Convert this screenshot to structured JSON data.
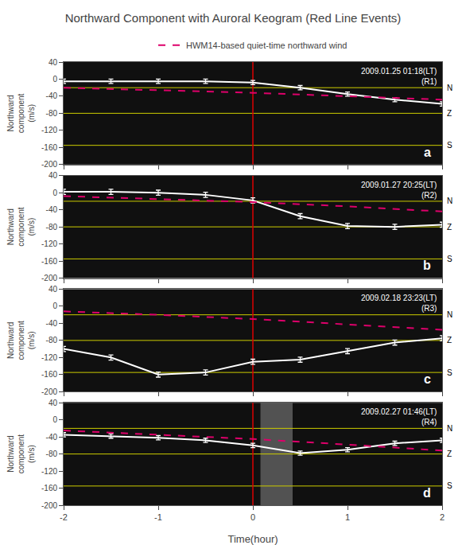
{
  "chart_data": [
    {
      "type": "line",
      "title": "Northward Component with Auroral Keogram (Red Line Events)",
      "ylabel": "Northward\ncomponent\n(m/s)",
      "xlim": [
        -2.0,
        2.0
      ],
      "ylim": [
        -200,
        40
      ],
      "xticks": [
        -2,
        -1,
        0,
        1,
        2
      ],
      "yticks": [
        40,
        0,
        -40,
        -80,
        -120,
        -160,
        -200
      ],
      "grid": false,
      "tick_labels": "y",
      "series": [
        {
          "color": "white",
          "line_style": "solid",
          "x": [
            -2.0,
            -1.5,
            -1.0,
            -0.5,
            0.0,
            0.5,
            1.0,
            1.5,
            2.0
          ],
          "values": [
            -5,
            -5,
            -5,
            -5,
            -8,
            -20,
            -35,
            -48,
            -58
          ],
          "error": [
            5,
            5,
            5,
            5,
            5,
            5,
            5,
            5,
            5
          ]
        },
        {
          "name": "HWM14-based quiet-time northward wind",
          "color": "#dd006a",
          "line_style": "dashed",
          "x": [
            -2.0,
            -1.0,
            0.0,
            1.0,
            2.0
          ],
          "values": [
            -20,
            -26,
            -32,
            -40,
            -48
          ]
        }
      ],
      "annotations": [
        "a",
        "2009.01.25 01:18(LT)\n(R1)"
      ],
      "reference_lines": [
        {
          "y": -20,
          "label": "N",
          "color": "#cccc00"
        },
        {
          "y": -80,
          "label": "Z",
          "color": "#cccc00"
        },
        {
          "y": -155,
          "label": "S",
          "color": "#cccc00"
        },
        {
          "x": 0,
          "color": "#dd0000"
        }
      ]
    },
    {
      "type": "line",
      "ylabel": "Northward\ncomponent\n(m/s)",
      "xlim": [
        -2.0,
        2.0
      ],
      "ylim": [
        -200,
        40
      ],
      "xticks": [
        -2,
        -1,
        0,
        1,
        2
      ],
      "yticks": [
        40,
        0,
        -40,
        -80,
        -120,
        -160,
        -200
      ],
      "grid": false,
      "tick_labels": "y",
      "series": [
        {
          "color": "white",
          "line_style": "solid",
          "x": [
            -2.0,
            -1.5,
            -1.0,
            -0.5,
            0.0,
            0.5,
            1.0,
            1.5,
            2.0
          ],
          "values": [
            2,
            2,
            0,
            -5,
            -18,
            -55,
            -78,
            -80,
            -75
          ],
          "error": [
            6,
            6,
            6,
            6,
            6,
            6,
            6,
            6,
            6
          ]
        },
        {
          "name": "HWM14-based quiet-time northward wind",
          "color": "#dd006a",
          "line_style": "dashed",
          "x": [
            -2.0,
            -1.0,
            0.0,
            1.0,
            2.0
          ],
          "values": [
            -8,
            -15,
            -22,
            -32,
            -44
          ]
        }
      ],
      "annotations": [
        "b",
        "2009.01.27 20:25(LT)\n(R2)"
      ],
      "reference_lines": [
        {
          "y": -20,
          "label": "N",
          "color": "#cccc00"
        },
        {
          "y": -80,
          "label": "Z",
          "color": "#cccc00"
        },
        {
          "y": -155,
          "label": "S",
          "color": "#cccc00"
        },
        {
          "x": 0,
          "color": "#dd0000"
        }
      ]
    },
    {
      "type": "line",
      "ylabel": "Northward\ncomponent\n(m/s)",
      "xlim": [
        -2.0,
        2.0
      ],
      "ylim": [
        -200,
        40
      ],
      "xticks": [
        -2,
        -1,
        0,
        1,
        2
      ],
      "yticks": [
        40,
        0,
        -40,
        -80,
        -120,
        -160,
        -200
      ],
      "grid": false,
      "tick_labels": "y",
      "series": [
        {
          "color": "white",
          "line_style": "solid",
          "x": [
            -2.0,
            -1.5,
            -1.0,
            -0.5,
            0.0,
            0.5,
            1.0,
            1.5,
            2.0
          ],
          "values": [
            -100,
            -120,
            -160,
            -155,
            -130,
            -125,
            -105,
            -85,
            -75
          ],
          "error": [
            6,
            6,
            6,
            6,
            6,
            6,
            6,
            6,
            6
          ]
        },
        {
          "name": "HWM14-based quiet-time northward wind",
          "color": "#dd006a",
          "line_style": "dashed",
          "x": [
            -2.0,
            -1.0,
            0.0,
            1.0,
            2.0
          ],
          "values": [
            -12,
            -20,
            -30,
            -42,
            -55
          ]
        }
      ],
      "annotations": [
        "c",
        "2009.02.18 23:23(LT)\n(R3)"
      ],
      "reference_lines": [
        {
          "y": -20,
          "label": "N",
          "color": "#cccc00"
        },
        {
          "y": -80,
          "label": "Z",
          "color": "#cccc00"
        },
        {
          "y": -155,
          "label": "S",
          "color": "#cccc00"
        },
        {
          "x": 0,
          "color": "#dd0000"
        }
      ]
    },
    {
      "type": "line",
      "xlabel": "Time(hour)",
      "ylabel": "Northward\ncomponent\n(m/s)",
      "xlim": [
        -2.0,
        2.0
      ],
      "ylim": [
        -200,
        40
      ],
      "xticks": [
        -2,
        -1,
        0,
        1,
        2
      ],
      "yticks": [
        40,
        0,
        -40,
        -80,
        -120,
        -160,
        -200
      ],
      "grid": false,
      "series": [
        {
          "color": "white",
          "line_style": "solid",
          "x": [
            -2.0,
            -1.5,
            -1.0,
            -0.5,
            0.0,
            0.5,
            1.0,
            1.5,
            2.0
          ],
          "values": [
            -35,
            -38,
            -42,
            -48,
            -60,
            -78,
            -70,
            -55,
            -48
          ],
          "error": [
            5,
            5,
            5,
            5,
            5,
            5,
            5,
            5,
            5
          ]
        },
        {
          "name": "HWM14-based quiet-time northward wind",
          "color": "#dd006a",
          "line_style": "dashed",
          "x": [
            -2.0,
            -1.0,
            0.0,
            1.0,
            2.0
          ],
          "values": [
            -25,
            -35,
            -45,
            -58,
            -72
          ]
        }
      ],
      "annotations": [
        "d",
        "2009.02.27 01:46(LT)\n(R4)"
      ],
      "reference_lines": [
        {
          "y": -20,
          "label": "N",
          "color": "#cccc00"
        },
        {
          "y": -80,
          "label": "Z",
          "color": "#cccc00"
        },
        {
          "y": -155,
          "label": "S",
          "color": "#cccc00"
        },
        {
          "x": 0,
          "color": "#dd0000"
        }
      ],
      "shaded": [
        {
          "x": [
            0.08,
            0.42
          ],
          "color": "#888888"
        }
      ]
    }
  ]
}
